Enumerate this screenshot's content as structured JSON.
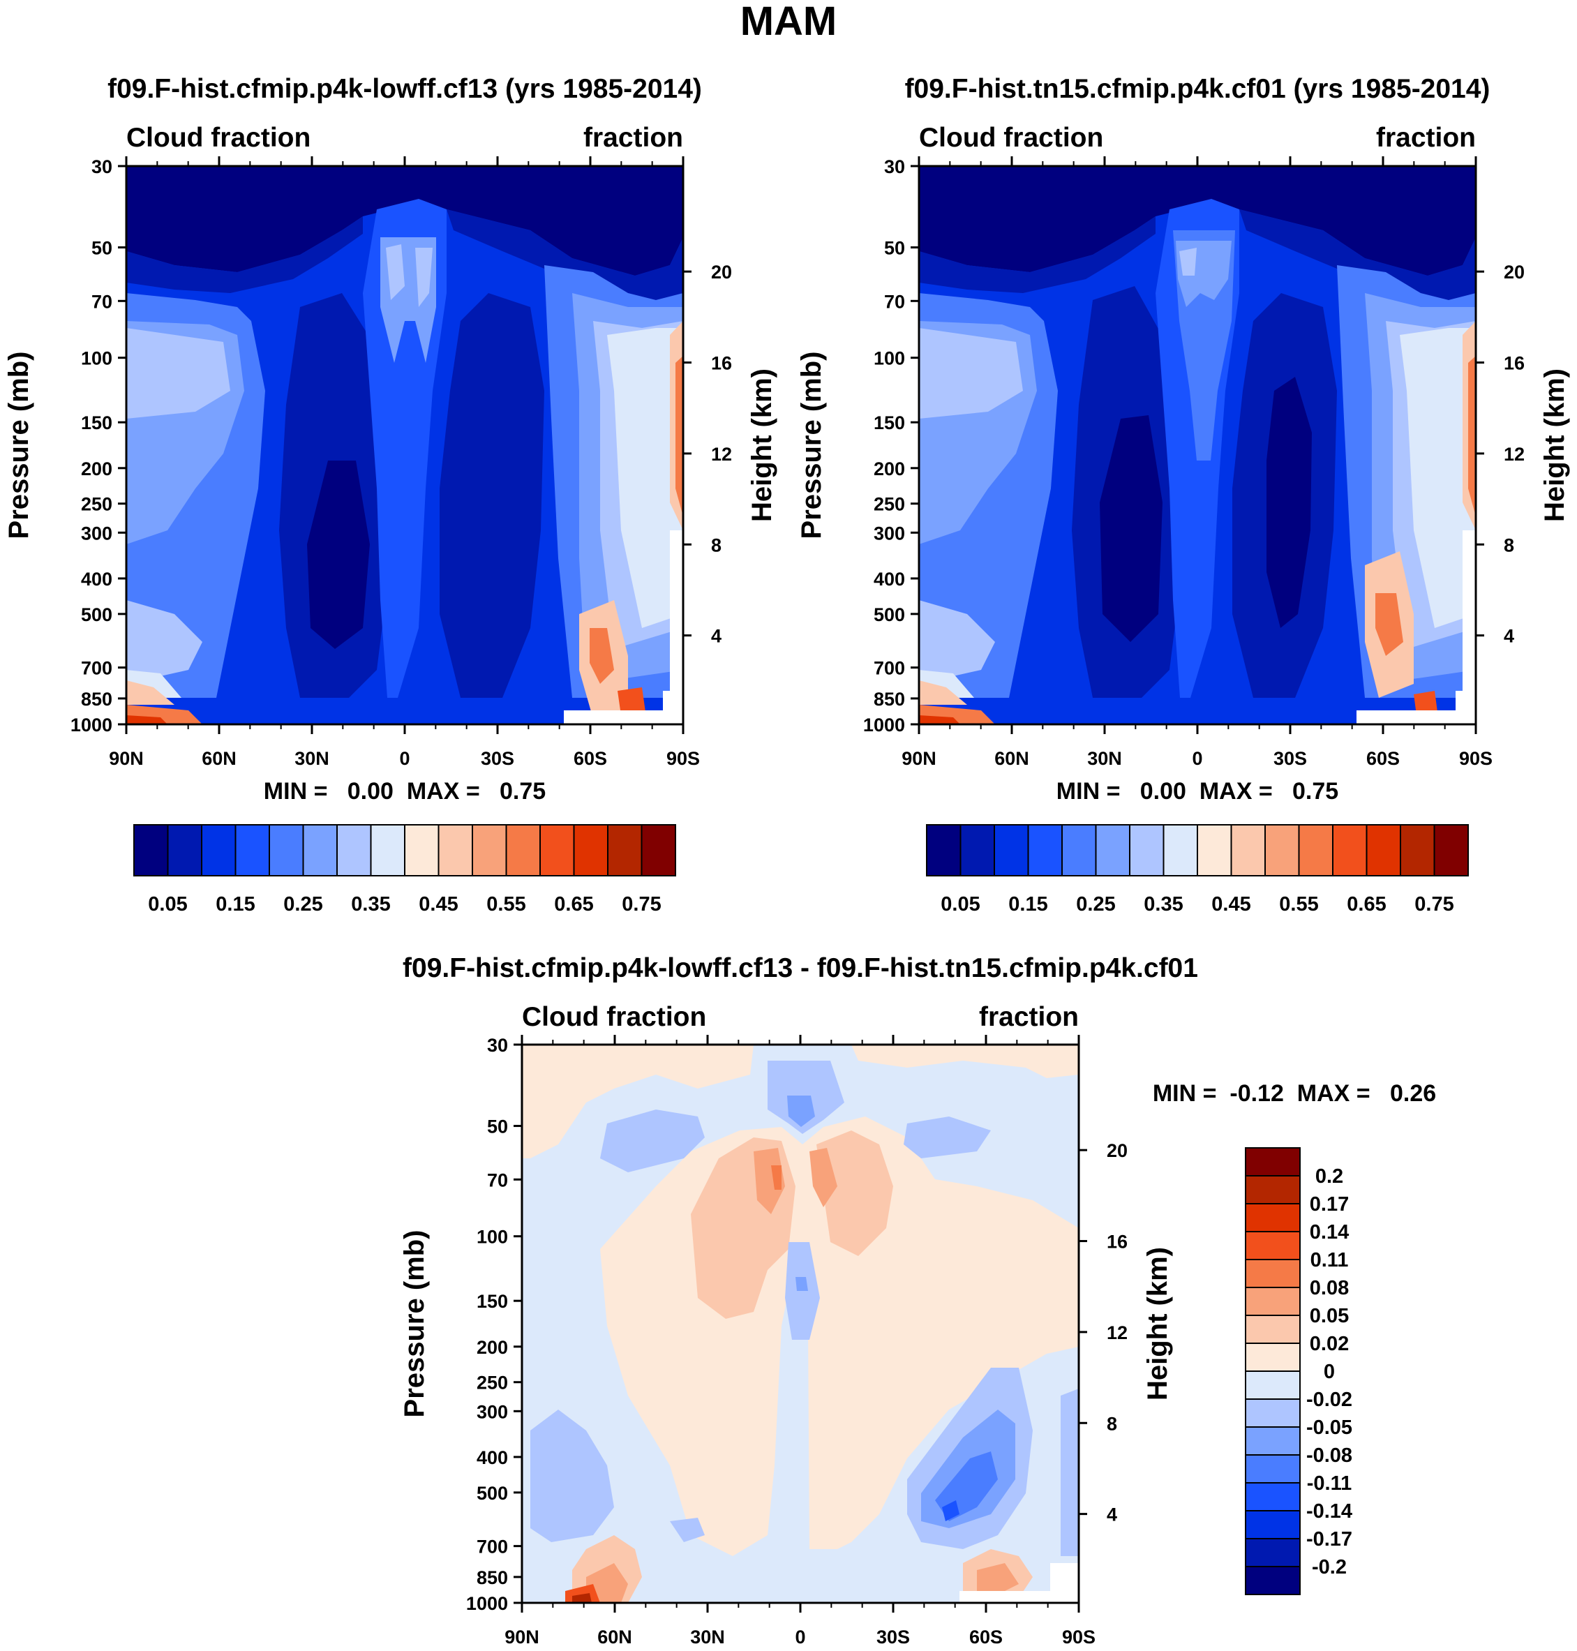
{
  "page_title": "MAM",
  "colors": {
    "abs_palette": [
      "#00007f",
      "#0019b0",
      "#0033e6",
      "#1a53ff",
      "#4a7dff",
      "#7aa2ff",
      "#aec5ff",
      "#dce9fb",
      "#fde9d9",
      "#fbc8ad",
      "#f8a27a",
      "#f57a47",
      "#f2501c",
      "#e03300",
      "#b32600",
      "#800000"
    ],
    "diff_palette": [
      "#00007f",
      "#0019b0",
      "#0033e6",
      "#1a53ff",
      "#4a7dff",
      "#7aa2ff",
      "#aec5ff",
      "#dce9fb",
      "#fde9d9",
      "#fbc8ad",
      "#f8a27a",
      "#f57a47",
      "#f2501c",
      "#e03300",
      "#b32600",
      "#800000"
    ],
    "missing": "#ffffff"
  },
  "chart_data": [
    {
      "type": "heatmap",
      "title": "f09.F-hist.cfmip.p4k-lowff.cf13 (yrs 1985-2014)",
      "left_label": "Cloud fraction",
      "right_label": "fraction",
      "ylabel": "Pressure (mb)",
      "ylabel_right": "Height (km)",
      "x_ticks": [
        "90N",
        "60N",
        "30N",
        "0",
        "30S",
        "60S",
        "90S"
      ],
      "x_range": [
        90,
        -90
      ],
      "y_ticks": [
        "30",
        "50",
        "70",
        "100",
        "150",
        "200",
        "250",
        "300",
        "400",
        "500",
        "700",
        "850",
        "1000"
      ],
      "y_range": [
        30,
        1000
      ],
      "height_ticks": [
        "20",
        "16",
        "12",
        "8",
        "4"
      ],
      "min_max": "MIN =   0.00  MAX =   0.75",
      "colorbar_labels": [
        "0.05",
        "0.15",
        "0.25",
        "0.35",
        "0.45",
        "0.55",
        "0.65",
        "0.75"
      ],
      "levels": [
        0.05,
        0.1,
        0.15,
        0.2,
        0.25,
        0.3,
        0.35,
        0.4,
        0.45,
        0.5,
        0.55,
        0.6,
        0.65,
        0.7,
        0.75
      ],
      "min": 0.0,
      "max": 0.75
    },
    {
      "type": "heatmap",
      "title": "f09.F-hist.tn15.cfmip.p4k.cf01 (yrs 1985-2014)",
      "left_label": "Cloud fraction",
      "right_label": "fraction",
      "ylabel": "Pressure (mb)",
      "ylabel_right": "Height (km)",
      "x_ticks": [
        "90N",
        "60N",
        "30N",
        "0",
        "30S",
        "60S",
        "90S"
      ],
      "x_range": [
        90,
        -90
      ],
      "y_ticks": [
        "30",
        "50",
        "70",
        "100",
        "150",
        "200",
        "250",
        "300",
        "400",
        "500",
        "700",
        "850",
        "1000"
      ],
      "y_range": [
        30,
        1000
      ],
      "height_ticks": [
        "20",
        "16",
        "12",
        "8",
        "4"
      ],
      "min_max": "MIN =   0.00  MAX =   0.75",
      "colorbar_labels": [
        "0.05",
        "0.15",
        "0.25",
        "0.35",
        "0.45",
        "0.55",
        "0.65",
        "0.75"
      ],
      "levels": [
        0.05,
        0.1,
        0.15,
        0.2,
        0.25,
        0.3,
        0.35,
        0.4,
        0.45,
        0.5,
        0.55,
        0.6,
        0.65,
        0.7,
        0.75
      ],
      "min": 0.0,
      "max": 0.75
    },
    {
      "type": "heatmap",
      "title": "f09.F-hist.cfmip.p4k-lowff.cf13 - f09.F-hist.tn15.cfmip.p4k.cf01",
      "left_label": "Cloud fraction",
      "right_label": "fraction",
      "ylabel": "Pressure (mb)",
      "ylabel_right": "Height (km)",
      "x_ticks": [
        "90N",
        "60N",
        "30N",
        "0",
        "30S",
        "60S",
        "90S"
      ],
      "x_range": [
        90,
        -90
      ],
      "y_ticks": [
        "30",
        "50",
        "70",
        "100",
        "150",
        "200",
        "250",
        "300",
        "400",
        "500",
        "700",
        "850",
        "1000"
      ],
      "y_range": [
        30,
        1000
      ],
      "height_ticks": [
        "20",
        "16",
        "12",
        "8",
        "4"
      ],
      "min_max": "MIN =  -0.12  MAX =   0.26",
      "colorbar_labels": [
        "0.2",
        "0.17",
        "0.14",
        "0.11",
        "0.08",
        "0.05",
        "0.02",
        "0",
        "-0.02",
        "-0.05",
        "-0.08",
        "-0.11",
        "-0.14",
        "-0.17",
        "-0.2"
      ],
      "levels": [
        -0.2,
        -0.17,
        -0.14,
        -0.11,
        -0.08,
        -0.05,
        -0.02,
        0,
        0.02,
        0.05,
        0.08,
        0.11,
        0.14,
        0.17,
        0.2
      ],
      "min": -0.12,
      "max": 0.26
    }
  ]
}
